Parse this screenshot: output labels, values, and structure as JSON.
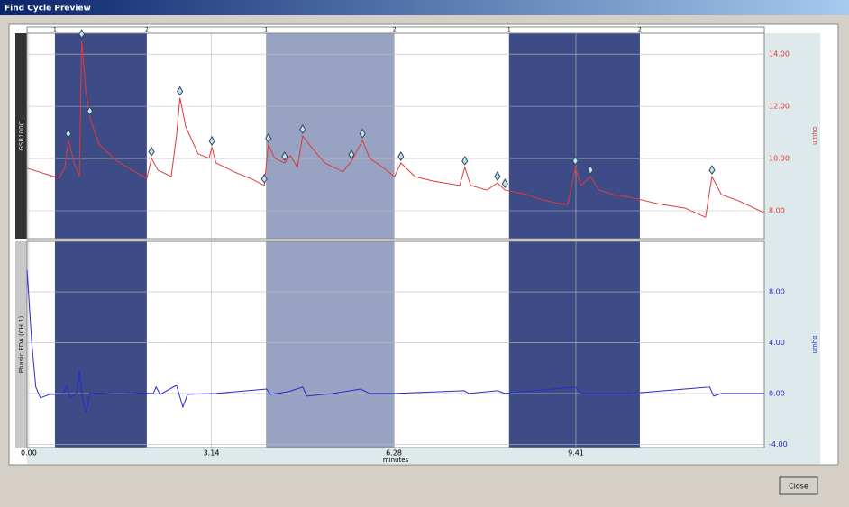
{
  "window": {
    "title": "Find Cycle Preview",
    "close_button": "Close"
  },
  "x_axis": {
    "label": "minutes",
    "xlim": [
      -0.03,
      12.65
    ],
    "xticks": [
      {
        "value": 0,
        "label": "0.00"
      },
      {
        "value": 3.14,
        "label": "3.14"
      },
      {
        "value": 6.28,
        "label": "6.28"
      },
      {
        "value": 9.41,
        "label": "9.41"
      }
    ]
  },
  "regions": [
    {
      "start": 0.45,
      "end": 2.03,
      "start_label": "1",
      "end_label": "2",
      "color": "#3d4c86"
    },
    {
      "start": 4.08,
      "end": 6.29,
      "start_label": "1",
      "end_label": "2",
      "color": "#98a2c3"
    },
    {
      "start": 8.26,
      "end": 10.51,
      "start_label": "1",
      "end_label": "2",
      "color": "#3d4c86"
    }
  ],
  "panels": [
    {
      "channel_label": "GSR100C",
      "unit_label": "umho",
      "color": "#e03a3a",
      "ylim": [
        6.93,
        14.8
      ],
      "yticks": [
        {
          "value": 8,
          "label": "8.00"
        },
        {
          "value": 10,
          "label": "10.00"
        },
        {
          "value": 12,
          "label": "12.00"
        },
        {
          "value": 14,
          "label": "14.00"
        }
      ],
      "x": [
        -0.03,
        0.43,
        0.53,
        0.62,
        0.68,
        0.78,
        0.87,
        0.91,
        0.98,
        1.05,
        1.21,
        1.52,
        1.83,
        2.03,
        2.11,
        2.22,
        2.45,
        2.54,
        2.6,
        2.7,
        2.91,
        3.1,
        3.15,
        3.22,
        3.53,
        3.84,
        4.05,
        4.12,
        4.23,
        4.4,
        4.5,
        4.62,
        4.71,
        4.85,
        5.09,
        5.4,
        5.55,
        5.74,
        5.86,
        6.09,
        6.29,
        6.4,
        6.64,
        6.95,
        7.41,
        7.5,
        7.6,
        7.88,
        8.06,
        8.19,
        8.57,
        8.81,
        9.12,
        9.27,
        9.4,
        9.5,
        9.66,
        9.81,
        10.05,
        10.36,
        10.82,
        11.29,
        11.64,
        11.75,
        11.91,
        12.22,
        12.65
      ],
      "values": [
        9.63,
        9.31,
        9.28,
        9.66,
        10.7,
        9.83,
        9.31,
        14.52,
        12.61,
        11.57,
        10.53,
        9.9,
        9.49,
        9.24,
        10.01,
        9.56,
        9.31,
        10.87,
        12.33,
        11.22,
        10.18,
        10.01,
        10.42,
        9.83,
        9.49,
        9.21,
        8.97,
        10.53,
        10.01,
        9.83,
        10.11,
        9.66,
        10.87,
        10.46,
        9.83,
        9.49,
        9.9,
        10.7,
        10.01,
        9.66,
        9.31,
        9.83,
        9.31,
        9.14,
        8.97,
        9.66,
        8.97,
        8.79,
        9.07,
        8.79,
        8.62,
        8.44,
        8.27,
        8.24,
        9.66,
        8.97,
        9.31,
        8.79,
        8.62,
        8.51,
        8.27,
        8.1,
        7.75,
        9.31,
        8.62,
        8.37,
        7.92
      ]
    },
    {
      "channel_label": "Phasic EDA (CH 1)",
      "unit_label": "umho",
      "color": "#2a2ad0",
      "ylim": [
        -4.26,
        11.97
      ],
      "yticks": [
        {
          "value": -4,
          "label": "-4.00"
        },
        {
          "value": 0,
          "label": "0.00"
        },
        {
          "value": 4,
          "label": "4.00"
        },
        {
          "value": 8,
          "label": "8.00"
        }
      ],
      "x": [
        -0.03,
        0.05,
        0.12,
        0.2,
        0.36,
        0.59,
        0.65,
        0.71,
        0.82,
        0.87,
        0.93,
        0.99,
        1.05,
        1.52,
        2.14,
        2.19,
        2.26,
        2.54,
        2.65,
        2.73,
        3.22,
        4.09,
        4.16,
        4.47,
        4.71,
        4.78,
        5.24,
        5.71,
        5.86,
        6.29,
        7.49,
        7.57,
        8.06,
        8.19,
        9.4,
        9.5,
        10.36,
        11.71,
        11.78,
        11.91,
        12.65
      ],
      "values": [
        9.72,
        4.04,
        0.5,
        -0.35,
        -0.07,
        -0.07,
        0.64,
        -0.35,
        0,
        1.77,
        -0.57,
        -1.49,
        0,
        0.07,
        0,
        0.5,
        -0.07,
        0.64,
        -1.06,
        -0.07,
        0,
        0.35,
        -0.07,
        0.14,
        0.5,
        -0.21,
        0,
        0.35,
        0,
        0,
        0.21,
        0,
        0.21,
        0,
        0.5,
        0,
        0,
        0.5,
        -0.21,
        0,
        0
      ]
    }
  ],
  "peaks": {
    "x": [
      0.68,
      0.91,
      1.05,
      2.11,
      2.6,
      3.15,
      4.05,
      4.12,
      4.4,
      4.71,
      5.55,
      5.74,
      6.4,
      7.5,
      8.06,
      8.19,
      9.4,
      9.66,
      11.75
    ],
    "values": [
      10.7,
      14.52,
      11.57,
      10.01,
      12.33,
      10.42,
      8.97,
      10.53,
      9.83,
      10.87,
      9.9,
      10.7,
      9.83,
      9.66,
      9.07,
      8.79,
      9.66,
      9.31,
      9.31
    ]
  }
}
